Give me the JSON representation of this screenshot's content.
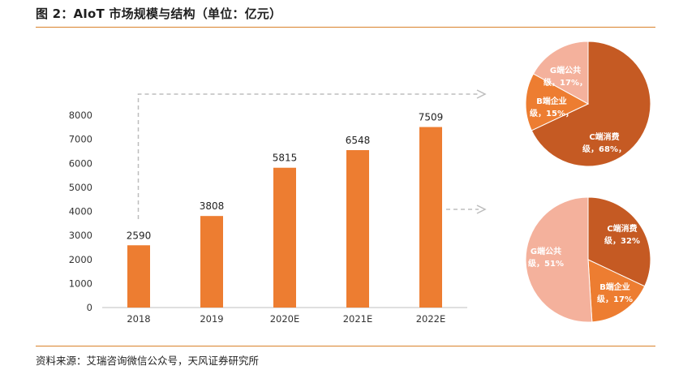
{
  "figure_title": "图 2：AIoT 市场规模与结构（单位：亿元）",
  "source": "资料来源：艾瑞咨询微信公众号，天风证券研究所",
  "colors": {
    "bar": "#ed7d31",
    "rule": "#d9822b",
    "pie_c": "#c55a23",
    "pie_b": "#ed7d31",
    "pie_g": "#f4b19c",
    "connector": "#bdbdbd"
  },
  "chart_data": [
    {
      "type": "bar",
      "categories": [
        "2018",
        "2019",
        "2020E",
        "2021E",
        "2022E"
      ],
      "values": [
        2590,
        3808,
        5815,
        6548,
        7509
      ],
      "data_labels": [
        "2590",
        "3808",
        "5815",
        "6548",
        "7509"
      ],
      "yticks": [
        "0",
        "1000",
        "2000",
        "3000",
        "4000",
        "5000",
        "6000",
        "7000",
        "8000"
      ],
      "ylim": [
        0,
        8000
      ],
      "title": "",
      "xlabel": "",
      "ylabel": "",
      "grid": false
    },
    {
      "type": "pie",
      "categories": [
        "C端消费级",
        "B端企业级",
        "G端公共级"
      ],
      "values": [
        68,
        15,
        17
      ],
      "labels": [
        {
          "line1": "C端消费",
          "line2": "级，68%，"
        },
        {
          "line1": "B端企业",
          "line2": "级，15%，"
        },
        {
          "line1": "G端公共",
          "line2": "级，17%，"
        }
      ]
    },
    {
      "type": "pie",
      "categories": [
        "C端消费级",
        "B端企业级",
        "G端公共级"
      ],
      "values": [
        32,
        17,
        51
      ],
      "labels": [
        {
          "line1": "C端消费",
          "line2": "级，32%"
        },
        {
          "line1": "B端企业",
          "line2": "级，17%"
        },
        {
          "line1": "G端公共",
          "line2": "级，51%"
        }
      ]
    }
  ]
}
